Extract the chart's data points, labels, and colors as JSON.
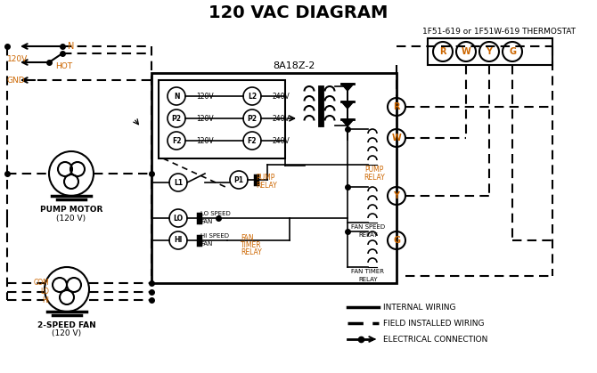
{
  "title": "120 VAC DIAGRAM",
  "title_fontsize": 14,
  "title_fontweight": "bold",
  "bg_color": "#ffffff",
  "text_color": "#000000",
  "orange_color": "#cc6600",
  "line_color": "#000000",
  "thermostat_label": "1F51-619 or 1F51W-619 THERMOSTAT",
  "box8A_label": "8A18Z-2",
  "legend_internal": "INTERNAL WIRING",
  "legend_field": "FIELD INSTALLED WIRING",
  "legend_elec": "ELECTRICAL CONNECTION"
}
